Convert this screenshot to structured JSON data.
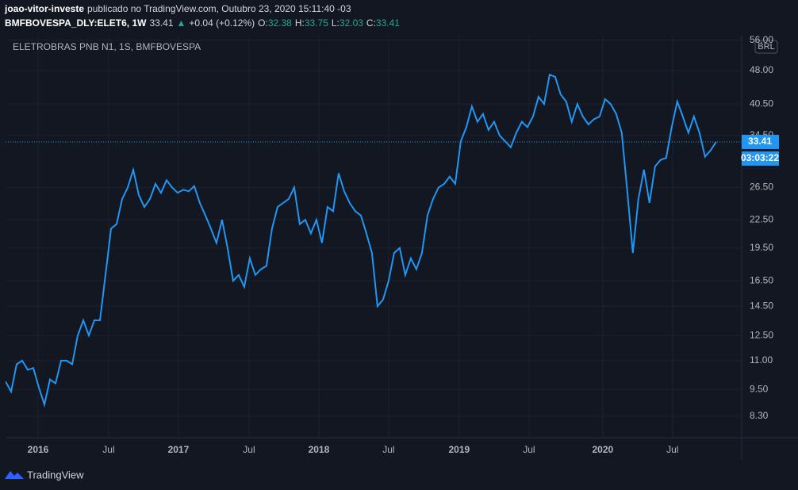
{
  "header": {
    "user": "joao-vitor-investe",
    "published": "publicado no TradingView.com, Outubro 23, 2020 15:11:40 -03",
    "symbol": "BMFBOVESPA_DLY:ELET6, 1W",
    "last": "33.41",
    "arrow": "▲",
    "change": "+0.04 (+0.12%)",
    "o_label": "O:",
    "o": "32.38",
    "h_label": "H:",
    "h": "33.75",
    "l_label": "L:",
    "l": "32.03",
    "c_label": "C:",
    "c": "33.41"
  },
  "chart_data": {
    "type": "line",
    "title": "ELETROBRAS PNB N1, 1S, BMFBOVESPA",
    "currency": "BRL",
    "countdown": "03:03:22",
    "log_scale": true,
    "grid": true,
    "series": [
      {
        "name": "ELET6",
        "color": "#2196f3",
        "values": [
          9.9,
          9.4,
          10.8,
          11.0,
          10.5,
          10.6,
          9.6,
          8.8,
          10.0,
          9.8,
          11.0,
          11.0,
          10.8,
          12.5,
          13.5,
          12.5,
          13.5,
          13.5,
          17.0,
          21.5,
          22.0,
          25.0,
          26.5,
          29.0,
          25.5,
          24.0,
          25.0,
          27.0,
          25.8,
          27.5,
          26.5,
          25.8,
          26.2,
          26.0,
          26.7,
          24.5,
          23.0,
          21.5,
          20.0,
          22.5,
          19.5,
          16.5,
          17.0,
          16.0,
          18.5,
          17.0,
          17.5,
          17.8,
          21.5,
          24.0,
          24.5,
          25.0,
          26.5,
          22.0,
          22.5,
          21.0,
          22.5,
          20.0,
          24.0,
          23.5,
          28.5,
          26.0,
          24.5,
          23.5,
          23.0,
          21.0,
          19.0,
          14.5,
          15.0,
          16.5,
          19.0,
          19.5,
          17.0,
          18.5,
          17.5,
          19.0,
          23.0,
          25.0,
          26.5,
          27.0,
          28.0,
          27.0,
          33.5,
          36.0,
          40.0,
          37.0,
          38.5,
          35.5,
          37.0,
          34.5,
          33.5,
          32.5,
          35.0,
          37.0,
          36.0,
          38.0,
          42.0,
          40.5,
          47.0,
          46.5,
          42.5,
          41.0,
          37.0,
          40.5,
          38.0,
          36.5,
          37.5,
          38.0,
          41.5,
          40.5,
          38.5,
          35.0,
          26.0,
          19.0,
          25.0,
          29.0,
          24.5,
          29.5,
          30.5,
          30.8,
          36.0,
          41.0,
          38.0,
          35.0,
          38.0,
          35.0,
          31.0,
          32.0,
          33.41
        ]
      }
    ],
    "xlim": [
      0,
      132.6
    ],
    "xticks": [
      {
        "value": 5.86,
        "label": "2016"
      },
      {
        "value": 18.57,
        "label": "Jul"
      },
      {
        "value": 31.14,
        "label": "2017"
      },
      {
        "value": 43.86,
        "label": "Jul"
      },
      {
        "value": 56.43,
        "label": "2018"
      },
      {
        "value": 69,
        "label": "Jul"
      },
      {
        "value": 81.71,
        "label": "2019"
      },
      {
        "value": 94.29,
        "label": "Jul"
      },
      {
        "value": 107.57,
        "label": "2020"
      },
      {
        "value": 120.14,
        "label": "Jul"
      }
    ],
    "ylim": [
      7.44,
      57.3
    ],
    "yticks": [
      {
        "value": 8.3,
        "label": "8.30"
      },
      {
        "value": 9.5,
        "label": "9.50"
      },
      {
        "value": 11,
        "label": "11.00"
      },
      {
        "value": 12.5,
        "label": "12.50"
      },
      {
        "value": 14.5,
        "label": "14.50"
      },
      {
        "value": 16.5,
        "label": "16.50"
      },
      {
        "value": 19.5,
        "label": "19.50"
      },
      {
        "value": 22.5,
        "label": "22.50"
      },
      {
        "value": 26.5,
        "label": "26.50"
      },
      {
        "value": 34.5,
        "label": "34.50"
      },
      {
        "value": 40.5,
        "label": "40.50"
      },
      {
        "value": 48,
        "label": "48.00"
      },
      {
        "value": 56,
        "label": "56.00"
      }
    ]
  },
  "footer": {
    "brand": "TradingView"
  }
}
